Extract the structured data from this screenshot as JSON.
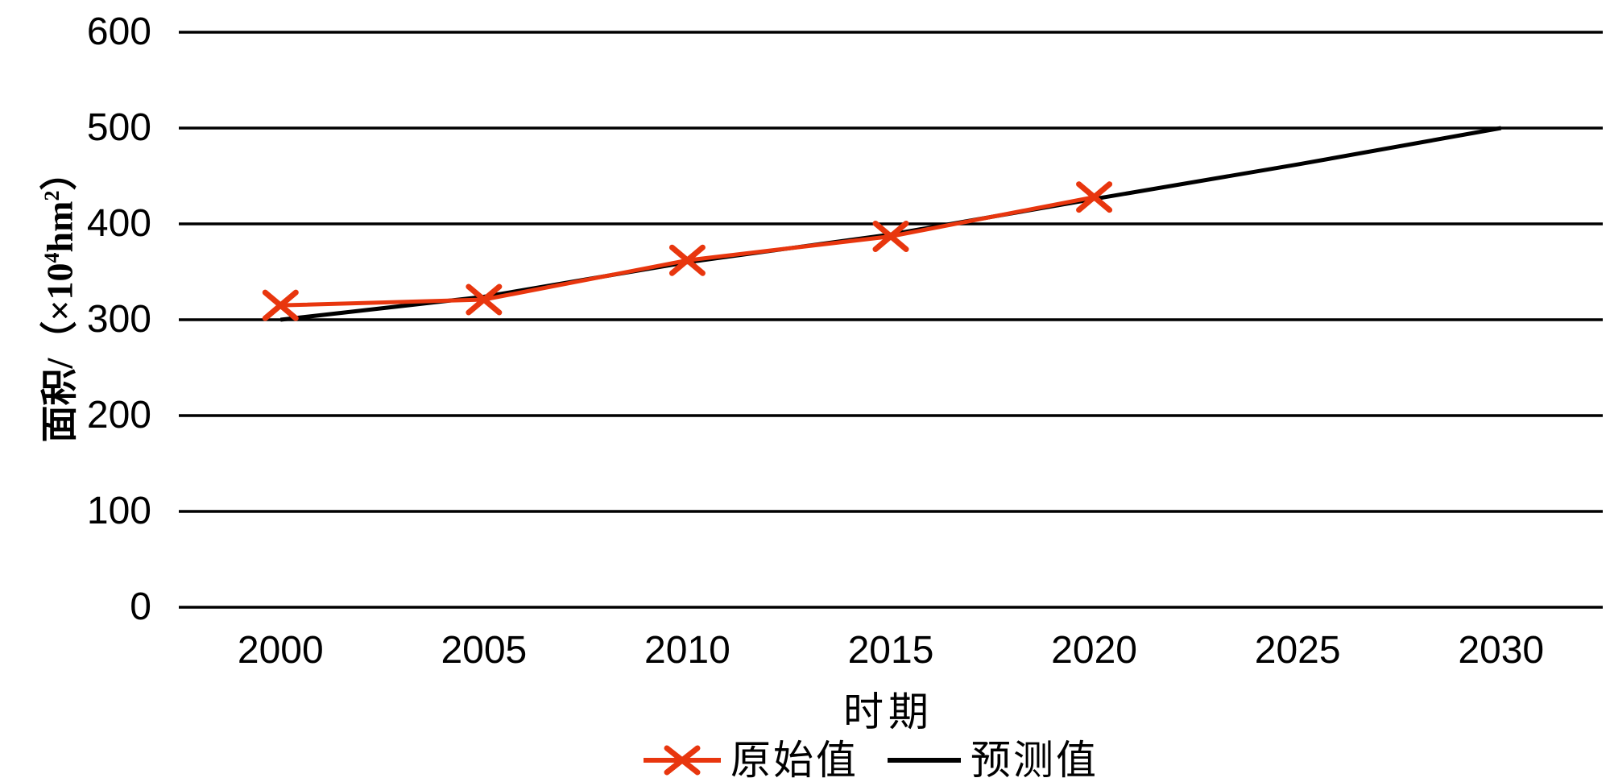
{
  "chart_data": {
    "type": "line",
    "title": "",
    "xlabel": "时期",
    "ylabel": {
      "full": "面积/（×10⁴hm²）",
      "prefix": "面积/（×10",
      "sup1": "4",
      "mid": "hm",
      "sup2": "2",
      "suffix": "）"
    },
    "x": [
      2000,
      2005,
      2010,
      2015,
      2020,
      2025,
      2030
    ],
    "x_tick_labels": [
      "2000",
      "2005",
      "2010",
      "2015",
      "2020",
      "2025",
      "2030"
    ],
    "y_ticks": [
      0,
      100,
      200,
      300,
      400,
      500,
      600
    ],
    "ylim": [
      0,
      600
    ],
    "grid": "horizontal-only",
    "legend_position": "bottom-center",
    "colors": {
      "original_series": "#e8360e",
      "predicted_series": "#000000",
      "gridline": "#000000",
      "background": "#ffffff"
    },
    "series": [
      {
        "name": "原始值",
        "marker": "x",
        "color": "#e8360e",
        "x": [
          2000,
          2005,
          2010,
          2015,
          2020
        ],
        "values": [
          315,
          321,
          362,
          387,
          428
        ]
      },
      {
        "name": "预测值",
        "marker": "none",
        "color": "#000000",
        "x": [
          2000,
          2005,
          2010,
          2015,
          2020,
          2025,
          2030
        ],
        "values": [
          300,
          324,
          360,
          389,
          426,
          462,
          500
        ]
      }
    ]
  }
}
